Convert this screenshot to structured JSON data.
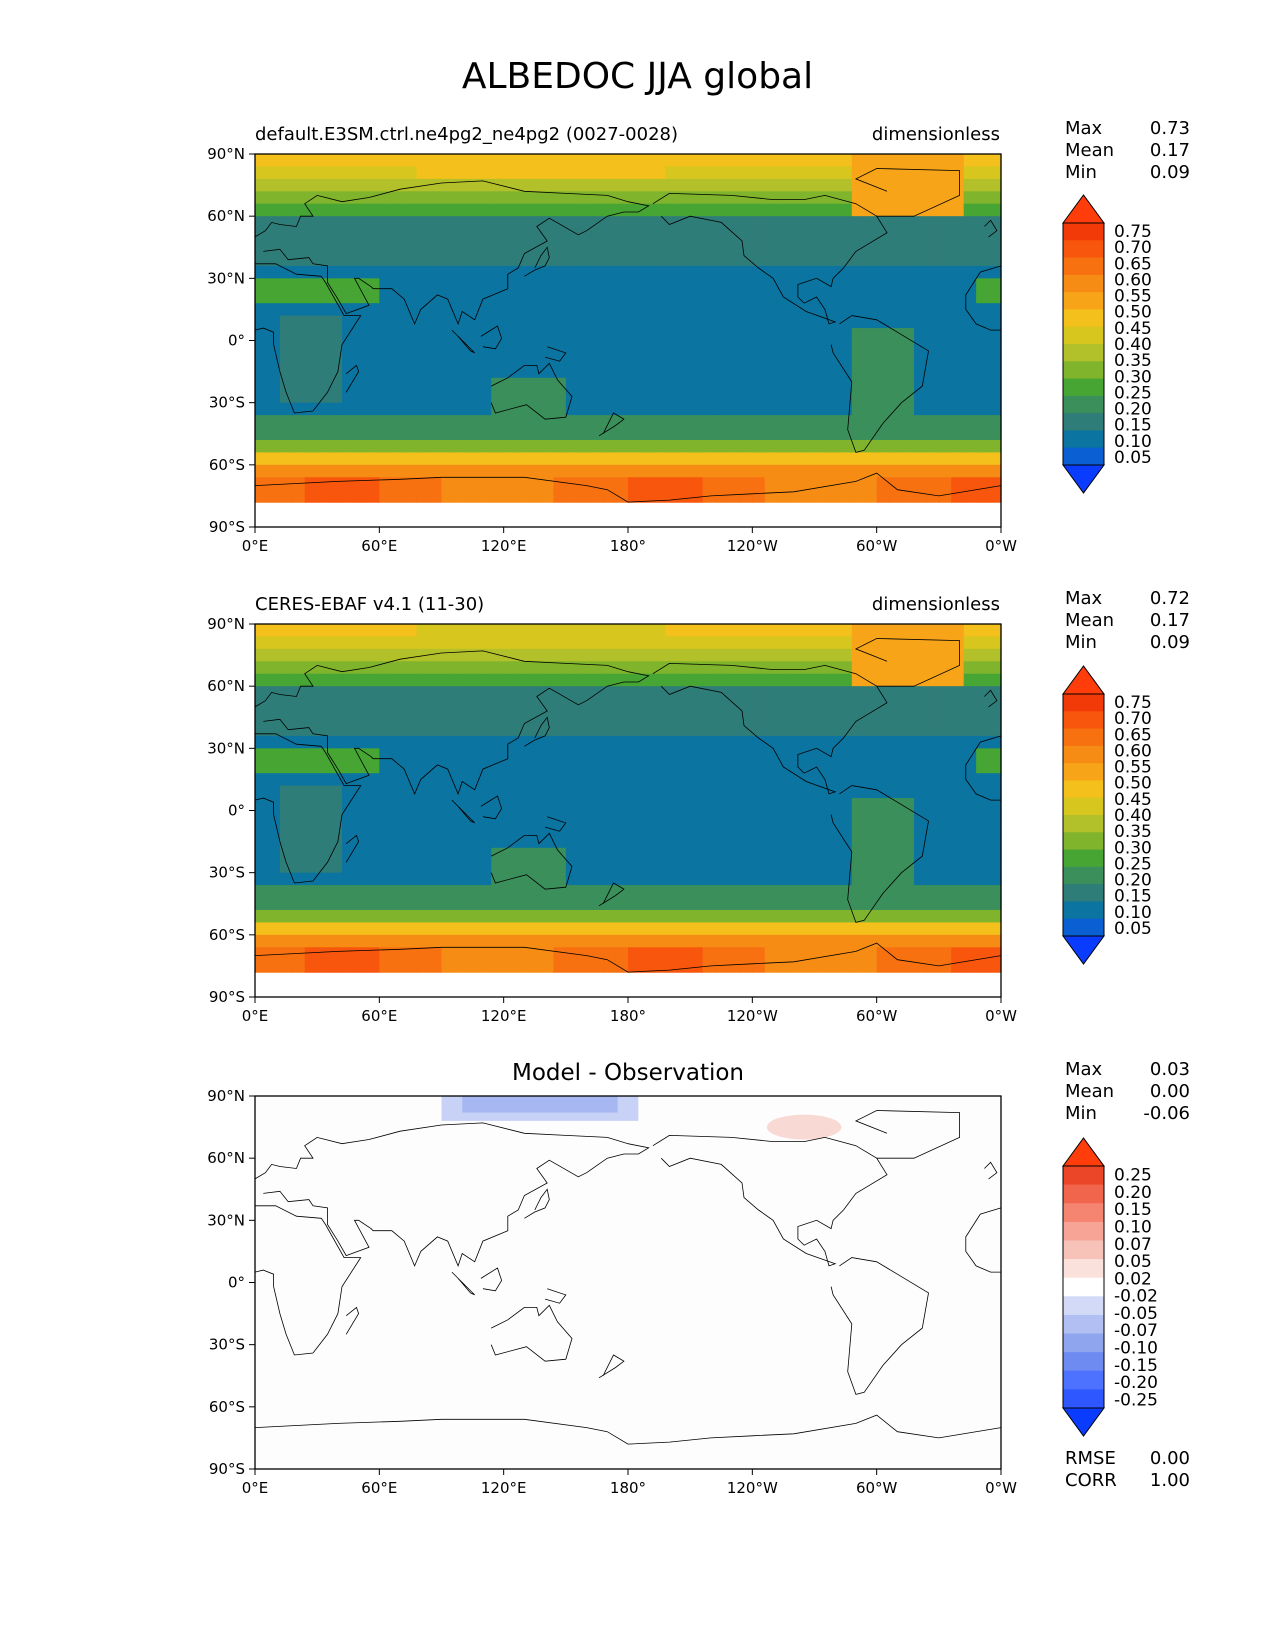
{
  "title": "ALBEDOC JJA global",
  "colors": {
    "model_levels": [
      "#0a3cff",
      "#0a5fd2",
      "#0b74a0",
      "#2f7d78",
      "#3a8f5a",
      "#47a534",
      "#7fb42c",
      "#b2c12a",
      "#d6c61e",
      "#f4c01b",
      "#f7a418",
      "#f78c14",
      "#f77110",
      "#f7560c",
      "#f23a08",
      "#ff3d0a"
    ],
    "diff_levels": [
      "#0a3cff",
      "#2e57ff",
      "#4d72ff",
      "#6e8bf2",
      "#8fa5ee",
      "#b1bff3",
      "#d2daf8",
      "#ffffff",
      "#fbe1dc",
      "#f7c2b8",
      "#f7a395",
      "#f58470",
      "#f1654d",
      "#ec4629",
      "#ff3d0a"
    ],
    "coastline": "#000000"
  },
  "chart_data": [
    {
      "type": "heatmap",
      "title": "default.E3SM.ctrl.ne4pg2_ne4pg2 (0027-0028)",
      "units": "dimensionless",
      "stats": {
        "Max": "0.73",
        "Mean": "0.17",
        "Min": "0.09"
      },
      "x_ticks": [
        "0°E",
        "60°E",
        "120°E",
        "180°",
        "120°W",
        "60°W",
        "0°W"
      ],
      "y_ticks": [
        "90°N",
        "60°N",
        "30°N",
        "0°",
        "30°S",
        "60°S",
        "90°S"
      ],
      "colorbar_ticks": [
        "0.75",
        "0.70",
        "0.65",
        "0.60",
        "0.55",
        "0.50",
        "0.45",
        "0.40",
        "0.35",
        "0.30",
        "0.25",
        "0.20",
        "0.15",
        "0.10",
        "0.05"
      ],
      "xlim": [
        0,
        360
      ],
      "ylim": [
        -90,
        90
      ]
    },
    {
      "type": "heatmap",
      "title": "CERES-EBAF v4.1 (11-30)",
      "units": "dimensionless",
      "stats": {
        "Max": "0.72",
        "Mean": "0.17",
        "Min": "0.09"
      },
      "x_ticks": [
        "0°E",
        "60°E",
        "120°E",
        "180°",
        "120°W",
        "60°W",
        "0°W"
      ],
      "y_ticks": [
        "90°N",
        "60°N",
        "30°N",
        "0°",
        "30°S",
        "60°S",
        "90°S"
      ],
      "colorbar_ticks": [
        "0.75",
        "0.70",
        "0.65",
        "0.60",
        "0.55",
        "0.50",
        "0.45",
        "0.40",
        "0.35",
        "0.30",
        "0.25",
        "0.20",
        "0.15",
        "0.10",
        "0.05"
      ],
      "xlim": [
        0,
        360
      ],
      "ylim": [
        -90,
        90
      ]
    },
    {
      "type": "heatmap",
      "title": "Model - Observation",
      "stats": {
        "Max": "0.03",
        "Mean": "0.00",
        "Min": "-0.06"
      },
      "metrics": {
        "RMSE": "0.00",
        "CORR": "1.00"
      },
      "x_ticks": [
        "0°E",
        "60°E",
        "120°E",
        "180°",
        "120°W",
        "60°W",
        "0°W"
      ],
      "y_ticks": [
        "90°N",
        "60°N",
        "30°N",
        "0°",
        "30°S",
        "60°S",
        "90°S"
      ],
      "colorbar_ticks": [
        "0.25",
        "0.20",
        "0.15",
        "0.10",
        "0.07",
        "0.05",
        "0.02",
        "-0.02",
        "-0.05",
        "-0.07",
        "-0.10",
        "-0.15",
        "-0.20",
        "-0.25"
      ],
      "xlim": [
        0,
        360
      ],
      "ylim": [
        -90,
        90
      ]
    }
  ]
}
